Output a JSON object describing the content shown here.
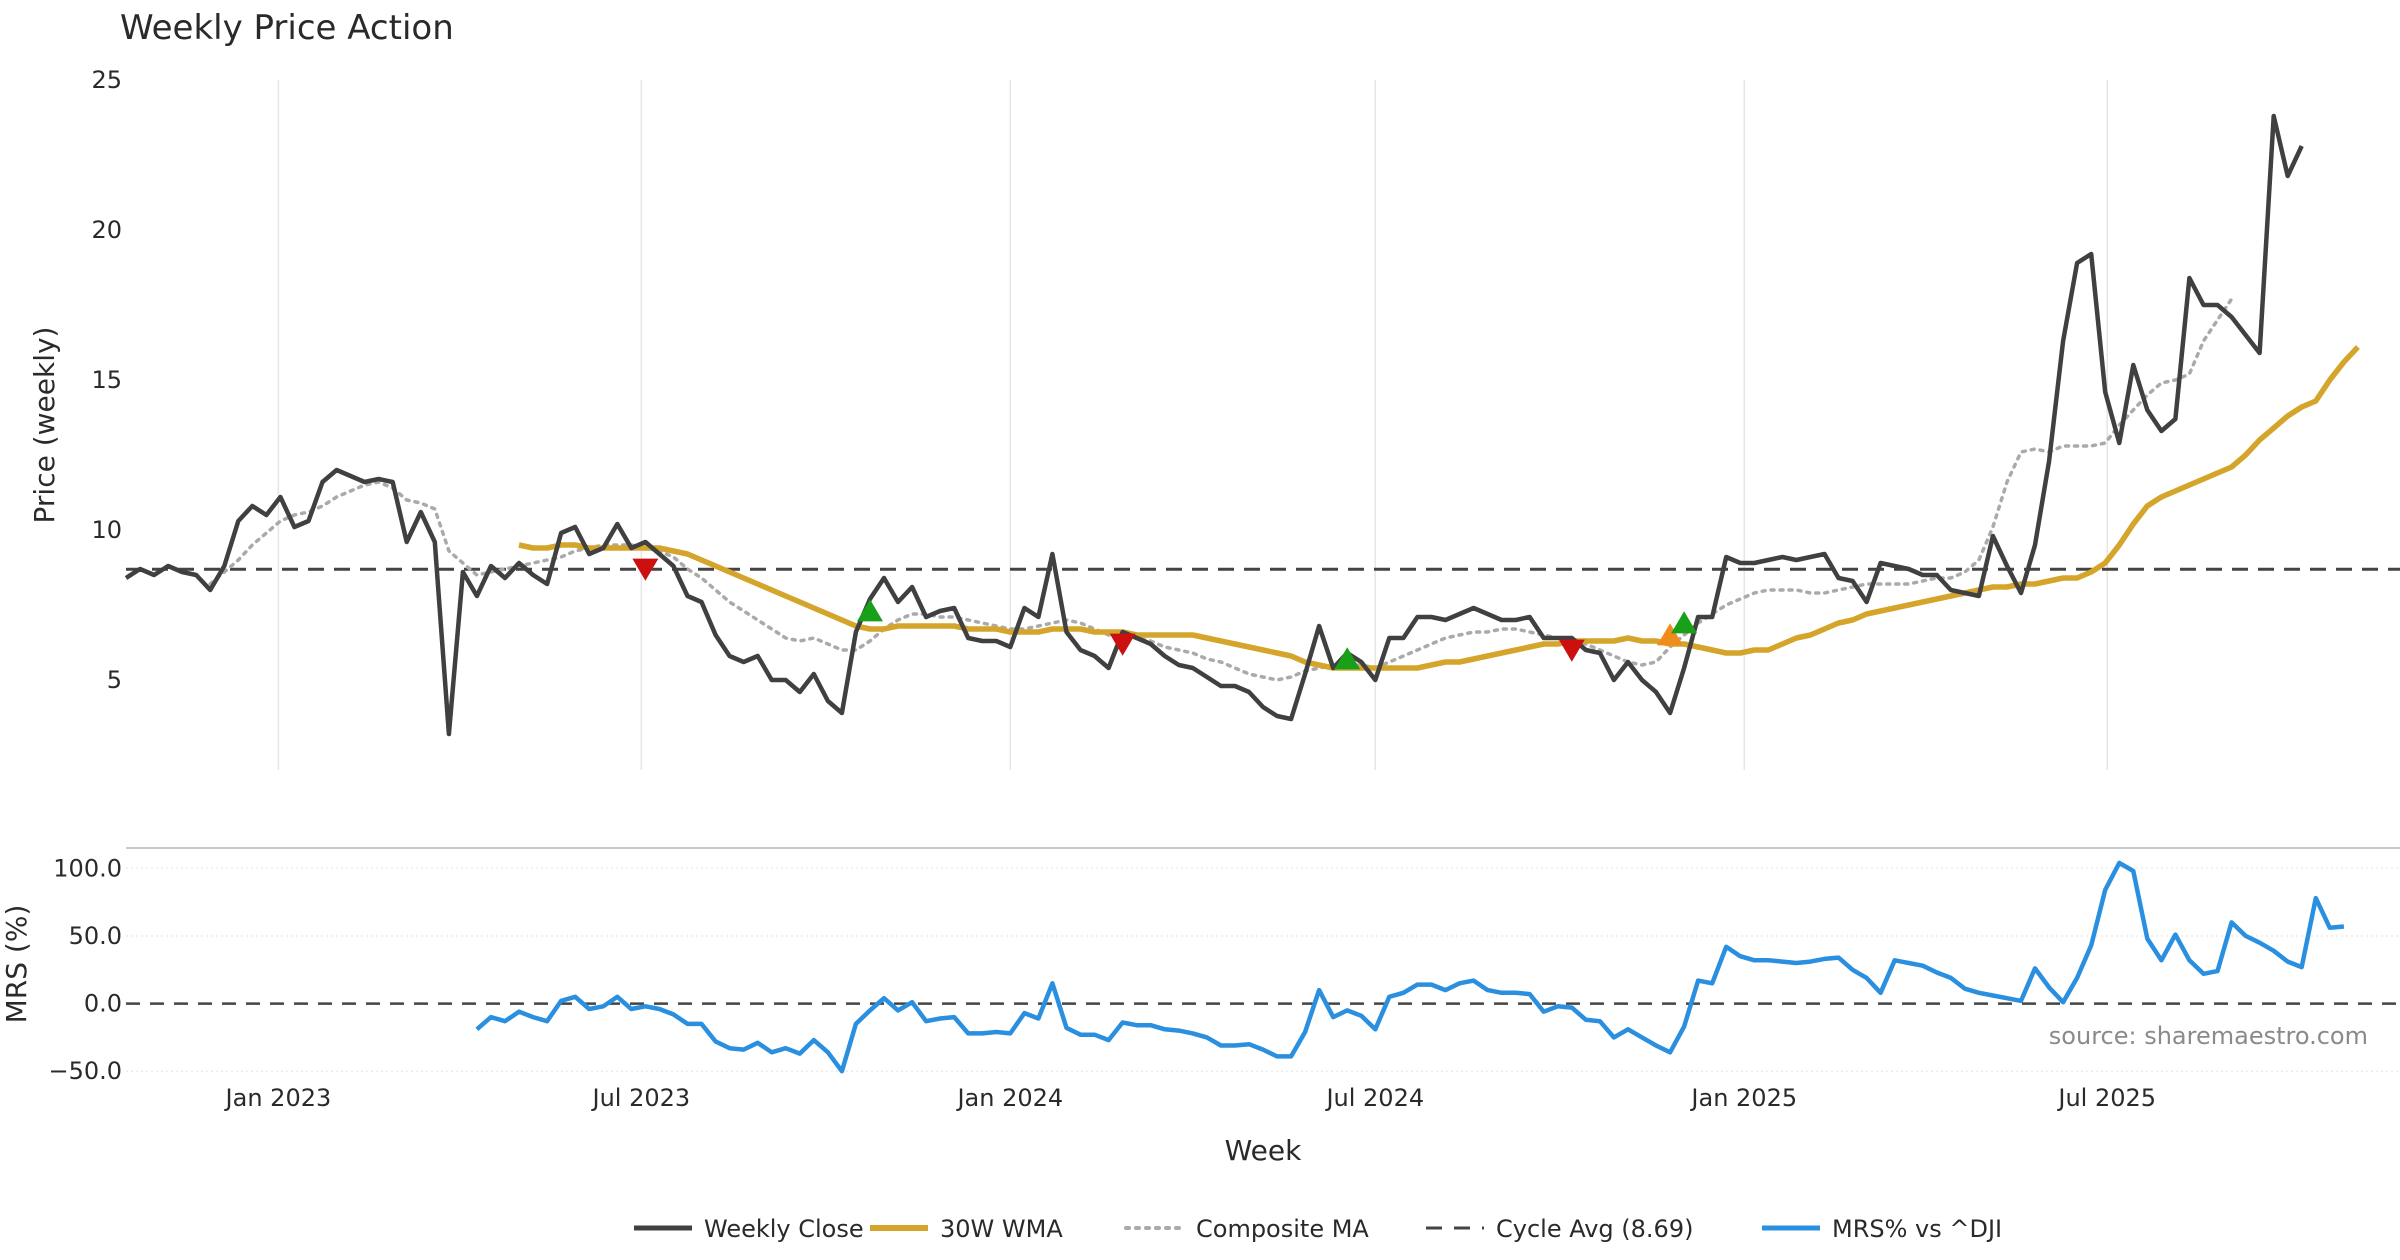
{
  "chart_data": {
    "type": "line",
    "title": "Weekly Price Action",
    "source": "source: sharemaestro.com",
    "x_label": "Week",
    "x_ticks": [
      "Jan 2023",
      "Jul 2023",
      "Jan 2024",
      "Jul 2024",
      "Jan 2025",
      "Jul 2025"
    ],
    "x_start": "2022-10-17",
    "week_count": 163,
    "cycle_avg": 8.69,
    "colors": {
      "close": "#404040",
      "wma": "#d4a52a",
      "composite": "#aaaaaa",
      "cycle": "#444444",
      "mrs": "#2b8fe0",
      "buy": "#18a018",
      "sell": "#cc1010",
      "warn": "#f08c1c"
    },
    "legend": [
      {
        "key": "close",
        "label": "Weekly Close",
        "style": "solid"
      },
      {
        "key": "wma",
        "label": "30W WMA",
        "style": "solid"
      },
      {
        "key": "composite",
        "label": "Composite MA",
        "style": "dotted"
      },
      {
        "key": "cycle",
        "label": "Cycle Avg (8.69)",
        "style": "dashed"
      },
      {
        "key": "mrs",
        "label": "MRS% vs ^DJI",
        "style": "solid"
      }
    ],
    "price_panel": {
      "ylabel": "Price (weekly)",
      "ylim": [
        2,
        25
      ],
      "yticks": [
        5,
        10,
        15,
        20,
        25
      ],
      "series": [
        {
          "name": "Weekly Close",
          "key": "close",
          "start_index": 0,
          "values": [
            8.4,
            8.7,
            8.5,
            8.8,
            8.6,
            8.5,
            8.0,
            8.8,
            10.3,
            10.8,
            10.5,
            11.1,
            10.1,
            10.3,
            11.6,
            12.0,
            11.8,
            11.6,
            11.7,
            11.6,
            9.6,
            10.6,
            9.6,
            3.2,
            8.6,
            7.8,
            8.8,
            8.4,
            8.9,
            8.5,
            8.2,
            9.9,
            10.1,
            9.2,
            9.4,
            10.2,
            9.4,
            9.6,
            9.2,
            8.8,
            7.8,
            7.6,
            6.5,
            5.8,
            5.6,
            5.8,
            5.0,
            5.0,
            4.6,
            5.2,
            4.3,
            3.9,
            6.6,
            7.7,
            8.4,
            7.6,
            8.1,
            7.1,
            7.3,
            7.4,
            6.4,
            6.3,
            6.3,
            6.1,
            7.4,
            7.1,
            9.2,
            6.6,
            6.0,
            5.8,
            5.4,
            6.6,
            6.4,
            6.2,
            5.8,
            5.5,
            5.4,
            5.1,
            4.8,
            4.8,
            4.6,
            4.1,
            3.8,
            3.7,
            5.2,
            6.8,
            5.4,
            5.9,
            5.6,
            5.0,
            6.4,
            6.4,
            7.1,
            7.1,
            7.0,
            7.2,
            7.4,
            7.2,
            7.0,
            7.0,
            7.1,
            6.4,
            6.4,
            6.4,
            6.0,
            5.9,
            5.0,
            5.6,
            5.0,
            4.6,
            3.9,
            5.4,
            7.1,
            7.1,
            9.1,
            8.9,
            8.9,
            9.0,
            9.1,
            9.0,
            9.1,
            9.2,
            8.4,
            8.3,
            7.6,
            8.9,
            8.8,
            8.7,
            8.5,
            8.5,
            8.0,
            7.9,
            7.8,
            9.8,
            8.8,
            7.9,
            9.5,
            12.3,
            16.3,
            18.9,
            19.2,
            14.6,
            12.9,
            15.5,
            14.0,
            13.3,
            13.7,
            18.4,
            17.5,
            17.5,
            17.1,
            16.5,
            15.9,
            23.8,
            21.8,
            22.8
          ]
        },
        {
          "name": "30W WMA",
          "key": "wma",
          "start_index": 28,
          "values": [
            9.5,
            9.4,
            9.4,
            9.5,
            9.5,
            9.4,
            9.4,
            9.4,
            9.4,
            9.4,
            9.4,
            9.3,
            9.2,
            9.0,
            8.8,
            8.6,
            8.4,
            8.2,
            8.0,
            7.8,
            7.6,
            7.4,
            7.2,
            7.0,
            6.8,
            6.7,
            6.7,
            6.8,
            6.8,
            6.8,
            6.8,
            6.8,
            6.7,
            6.7,
            6.7,
            6.6,
            6.6,
            6.6,
            6.7,
            6.7,
            6.7,
            6.6,
            6.6,
            6.6,
            6.5,
            6.5,
            6.5,
            6.5,
            6.5,
            6.4,
            6.3,
            6.2,
            6.1,
            6.0,
            5.9,
            5.8,
            5.6,
            5.5,
            5.4,
            5.4,
            5.4,
            5.4,
            5.4,
            5.4,
            5.4,
            5.5,
            5.6,
            5.6,
            5.7,
            5.8,
            5.9,
            6.0,
            6.1,
            6.2,
            6.2,
            6.3,
            6.3,
            6.3,
            6.3,
            6.4,
            6.3,
            6.3,
            6.2,
            6.2,
            6.1,
            6.0,
            5.9,
            5.9,
            6.0,
            6.0,
            6.2,
            6.4,
            6.5,
            6.7,
            6.9,
            7.0,
            7.2,
            7.3,
            7.4,
            7.5,
            7.6,
            7.7,
            7.8,
            7.9,
            8.0,
            8.1,
            8.1,
            8.2,
            8.2,
            8.3,
            8.4,
            8.4,
            8.6,
            8.9,
            9.5,
            10.2,
            10.8,
            11.1,
            11.3,
            11.5,
            11.7,
            11.9,
            12.1,
            12.5,
            13.0,
            13.4,
            13.8,
            14.1,
            14.3,
            15.0,
            15.6,
            16.1
          ]
        },
        {
          "name": "Composite MA",
          "key": "composite",
          "start_index": 6,
          "values": [
            8.2,
            8.6,
            9.0,
            9.5,
            9.9,
            10.3,
            10.5,
            10.6,
            10.8,
            11.1,
            11.3,
            11.5,
            11.6,
            11.4,
            11.0,
            10.9,
            10.7,
            9.3,
            8.9,
            8.5,
            8.6,
            8.7,
            8.8,
            8.9,
            9.0,
            9.1,
            9.3,
            9.4,
            9.5,
            9.5,
            9.5,
            9.4,
            9.3,
            9.1,
            8.7,
            8.4,
            8.0,
            7.6,
            7.3,
            7.0,
            6.7,
            6.4,
            6.3,
            6.4,
            6.2,
            6.0,
            6.0,
            6.3,
            6.7,
            7.0,
            7.2,
            7.2,
            7.1,
            7.1,
            7.0,
            6.9,
            6.8,
            6.7,
            6.7,
            6.8,
            6.9,
            7.0,
            6.9,
            6.7,
            6.5,
            6.5,
            6.4,
            6.3,
            6.1,
            6.0,
            5.9,
            5.7,
            5.6,
            5.4,
            5.2,
            5.1,
            5.0,
            5.1,
            5.3,
            5.4,
            5.5,
            5.5,
            5.5,
            5.4,
            5.6,
            5.8,
            6.0,
            6.2,
            6.4,
            6.5,
            6.6,
            6.6,
            6.7,
            6.7,
            6.6,
            6.5,
            6.4,
            6.3,
            6.2,
            6.0,
            5.8,
            5.6,
            5.5,
            5.6,
            6.1,
            6.5,
            6.9,
            7.2,
            7.5,
            7.7,
            7.9,
            8.0,
            8.0,
            8.0,
            7.9,
            7.9,
            8.0,
            8.1,
            8.2,
            8.2,
            8.2,
            8.2,
            8.3,
            8.4,
            8.4,
            8.6,
            9.0,
            10.1,
            11.6,
            12.6,
            12.7,
            12.6,
            12.8,
            12.8,
            12.8,
            12.9,
            13.5,
            14.0,
            14.5,
            14.9,
            15.0,
            15.2,
            16.3,
            17.0,
            17.7
          ]
        }
      ],
      "signals": [
        {
          "type": "sell",
          "index": 37,
          "value": 8.7
        },
        {
          "type": "buy",
          "index": 53,
          "value": 7.3
        },
        {
          "type": "sell",
          "index": 71,
          "value": 6.2
        },
        {
          "type": "buy",
          "index": 87,
          "value": 5.7
        },
        {
          "type": "sell",
          "index": 103,
          "value": 6.0
        },
        {
          "type": "warn",
          "index": 110,
          "value": 6.5
        },
        {
          "type": "buy",
          "index": 111,
          "value": 6.9
        }
      ]
    },
    "mrs_panel": {
      "ylabel": "MRS (%)",
      "ylim": [
        -55,
        115
      ],
      "yticks": [
        -50.0,
        0.0,
        50.0,
        100.0
      ],
      "tick_labels": [
        "−50.0",
        "0.0",
        "50.0",
        "100.0"
      ],
      "series": [
        {
          "name": "MRS% vs ^DJI",
          "key": "mrs",
          "start_index": 25,
          "values": [
            -19,
            -10,
            -13,
            -6,
            -10,
            -13,
            2,
            5,
            -4,
            -2,
            5,
            -4,
            -2,
            -4,
            -8,
            -15,
            -15,
            -28,
            -33,
            -34,
            -29,
            -36,
            -33,
            -37,
            -27,
            -36,
            -50,
            -15,
            -5,
            4,
            -5,
            1,
            -13,
            -11,
            -10,
            -22,
            -22,
            -21,
            -22,
            -7,
            -11,
            15,
            -18,
            -23,
            -23,
            -27,
            -14,
            -16,
            -16,
            -19,
            -20,
            -22,
            -25,
            -31,
            -31,
            -30,
            -34,
            -39,
            -39,
            -21,
            10,
            -10,
            -5,
            -9,
            -19,
            5,
            8,
            14,
            14,
            10,
            15,
            17,
            10,
            8,
            8,
            7,
            -6,
            -2,
            -3,
            -12,
            -13,
            -25,
            -19,
            -25,
            -31,
            -36,
            -17,
            17,
            15,
            42,
            35,
            32,
            32,
            31,
            30,
            31,
            33,
            34,
            25,
            19,
            8,
            32,
            30,
            28,
            23,
            19,
            11,
            8,
            6,
            4,
            2,
            26,
            12,
            1,
            19,
            43,
            84,
            104,
            98,
            48,
            32,
            51,
            32,
            22,
            24,
            60,
            50,
            45,
            39,
            31,
            27,
            78,
            56,
            57
          ]
        }
      ]
    }
  }
}
